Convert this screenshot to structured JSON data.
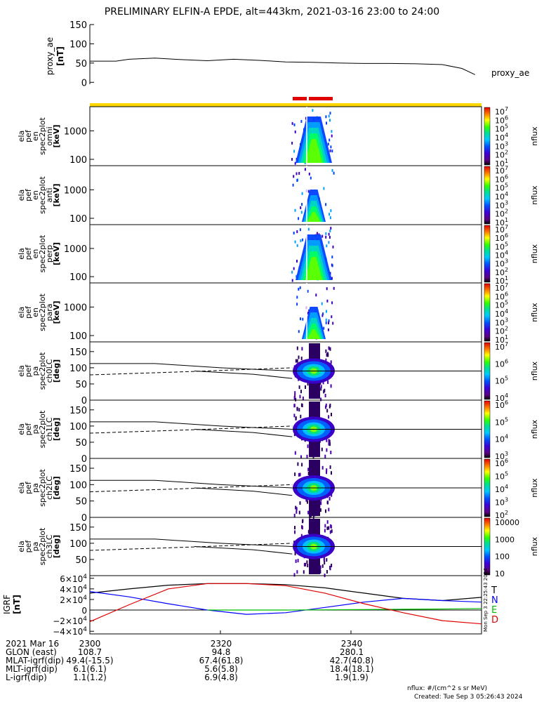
{
  "title": "PRELIMINARY ELFIN-A EPDE, alt=443km, 2021-03-16 23:00 to 24:00",
  "footer": {
    "units": "nflux: #/(cm^2 s sr MeV)",
    "created": "Created: Tue Sep  3 05:26:43 2024",
    "side_stamp": "Mon Sep  3 22:25:43 2024"
  },
  "colors": {
    "panel_line": "#000000",
    "orbit_bar": "#ffd700",
    "science_zone": "#e00000",
    "field_T": "#000000",
    "field_N": "#0000ff",
    "field_E": "#00c000",
    "field_D": "#e00000"
  },
  "chart_data": [
    {
      "panel": "proxy_ae",
      "type": "line",
      "ylabel": [
        "proxy_ae",
        "[nT]"
      ],
      "series_label": "proxy_ae",
      "ylim": [
        -5,
        150
      ],
      "yticks": [
        "150",
        "100",
        "50",
        "0"
      ],
      "ytick_values": [
        150,
        100,
        50,
        0
      ],
      "x": [
        2300,
        2304,
        2306,
        2310,
        2314,
        2318,
        2322,
        2326,
        2330,
        2334,
        2338,
        2342,
        2346,
        2350,
        2354,
        2357,
        2359
      ],
      "values": [
        55,
        55,
        60,
        63,
        59,
        56,
        60,
        57,
        53,
        52,
        50,
        49,
        49,
        48,
        46,
        36,
        20
      ]
    },
    {
      "panel": "omni_en",
      "type": "heatmap",
      "ylabel": [
        "ela",
        "pef",
        "en",
        "spec2plot",
        "omni",
        "[keV]"
      ],
      "yticks": [
        "1000",
        "100"
      ],
      "ytick_values": [
        1000,
        100
      ],
      "ylim": [
        60,
        7000
      ],
      "ylog": true,
      "colorbar": {
        "label": "nflux",
        "ticks": [
          "10^7",
          "10^6",
          "10^5",
          "10^4",
          "10^3",
          "10^2",
          "10^1"
        ]
      }
    },
    {
      "panel": "anti_en",
      "type": "heatmap",
      "ylabel": [
        "ela",
        "pef",
        "en",
        "spec2plot",
        "anti",
        "[keV]"
      ],
      "yticks": [
        "1000",
        "100"
      ],
      "ytick_values": [
        1000,
        100
      ],
      "ylim": [
        60,
        7000
      ],
      "ylog": true,
      "colorbar": {
        "label": "nflux",
        "ticks": [
          "10^7",
          "10^6",
          "10^5",
          "10^4",
          "10^3",
          "10^2",
          "10^1"
        ]
      }
    },
    {
      "panel": "perp_en",
      "type": "heatmap",
      "ylabel": [
        "ela",
        "pef",
        "en",
        "spec2plot",
        "perp",
        "[keV]"
      ],
      "yticks": [
        "1000",
        "100"
      ],
      "ytick_values": [
        1000,
        100
      ],
      "ylim": [
        60,
        7000
      ],
      "ylog": true,
      "colorbar": {
        "label": "nflux",
        "ticks": [
          "10^7",
          "10^6",
          "10^5",
          "10^4",
          "10^3",
          "10^2",
          "10^1"
        ]
      }
    },
    {
      "panel": "para_en",
      "type": "heatmap",
      "ylabel": [
        "ela",
        "pef",
        "en",
        "spec2plot",
        "para",
        "[keV]"
      ],
      "yticks": [
        "1000",
        "100"
      ],
      "ytick_values": [
        1000,
        100
      ],
      "ylim": [
        60,
        7000
      ],
      "ylog": true,
      "colorbar": {
        "label": "nflux",
        "ticks": [
          "10^7",
          "10^6",
          "10^5",
          "10^4",
          "10^3",
          "10^2",
          "10^1"
        ]
      }
    },
    {
      "panel": "ch0LC_pa",
      "type": "heatmap",
      "ylabel": [
        "ela",
        "pef",
        "pa",
        "spec2plot",
        "ch0LC",
        "[deg]"
      ],
      "yticks": [
        "150",
        "100",
        "50",
        "0"
      ],
      "ytick_values": [
        150,
        100,
        50,
        0
      ],
      "ylim": [
        0,
        180
      ],
      "colorbar": {
        "label": "nflux",
        "ticks": [
          "10^7",
          "10^6",
          "10^5",
          "10^4"
        ]
      }
    },
    {
      "panel": "ch1LC_pa",
      "type": "heatmap",
      "ylabel": [
        "ela",
        "pef",
        "pa",
        "spec2plot",
        "ch1LC",
        "[deg]"
      ],
      "yticks": [
        "150",
        "100",
        "50",
        "0"
      ],
      "ytick_values": [
        150,
        100,
        50,
        0
      ],
      "ylim": [
        0,
        180
      ],
      "colorbar": {
        "label": "nflux",
        "ticks": [
          "10^6",
          "10^5",
          "10^4",
          "10^3"
        ]
      }
    },
    {
      "panel": "ch2LC_pa",
      "type": "heatmap",
      "ylabel": [
        "ela",
        "pef",
        "pa",
        "spec2plot",
        "ch2LC",
        "[deg]"
      ],
      "yticks": [
        "150",
        "100",
        "50",
        "0"
      ],
      "ytick_values": [
        150,
        100,
        50,
        0
      ],
      "ylim": [
        0,
        180
      ],
      "colorbar": {
        "label": "nflux",
        "ticks": [
          "10^6",
          "10^5",
          "10^4",
          "10^3",
          "10^2"
        ]
      }
    },
    {
      "panel": "ch3LC_pa",
      "type": "heatmap",
      "ylabel": [
        "ela",
        "pef",
        "pa",
        "spec2plot",
        "ch3LC",
        "[deg]"
      ],
      "yticks": [
        "150",
        "100",
        "50"
      ],
      "ytick_values": [
        150,
        100,
        50
      ],
      "ylim": [
        0,
        180
      ],
      "colorbar": {
        "label": "nflux",
        "ticks": [
          "10000",
          "1000",
          "100",
          "10"
        ],
        "tick_values": [
          10000,
          1000,
          100,
          10
        ]
      }
    },
    {
      "panel": "igrf",
      "type": "line",
      "ylabel": [
        "IGRF",
        "[nT]"
      ],
      "yticks": [
        "6×10^4",
        "4×10^4",
        "2×10^4",
        "0",
        "−2×10^4",
        "−4×10^4"
      ],
      "ytick_values": [
        60000,
        40000,
        20000,
        0,
        -20000,
        -40000
      ],
      "ylim": [
        -45000,
        65000
      ],
      "legend": [
        "T",
        "N",
        "E",
        "D"
      ],
      "x": [
        2300,
        2306,
        2312,
        2318,
        2324,
        2330,
        2336,
        2342,
        2348,
        2354,
        2360
      ],
      "series": [
        {
          "name": "T",
          "values": [
            32000,
            40000,
            47000,
            50000,
            50000,
            48000,
            42000,
            32000,
            22000,
            18000,
            24000
          ]
        },
        {
          "name": "N",
          "values": [
            35000,
            25000,
            12000,
            0,
            -8000,
            -5000,
            5000,
            15000,
            22000,
            18000,
            15000
          ]
        },
        {
          "name": "E",
          "values": [
            null,
            null,
            null,
            0,
            0,
            0,
            500,
            1000,
            1500,
            2000,
            3000
          ]
        },
        {
          "name": "D",
          "values": [
            -22000,
            10000,
            40000,
            50000,
            50000,
            46000,
            32000,
            12000,
            -5000,
            -20000,
            -26000
          ]
        }
      ]
    }
  ],
  "time_axis": {
    "ticks": [
      "2300",
      "2320",
      "2340"
    ],
    "tick_values": [
      2300,
      2320,
      2340
    ],
    "xlim": [
      2300,
      2360
    ]
  },
  "ephemeris": {
    "rows": [
      {
        "label": "2021 Mar 16",
        "values": [
          "2300",
          "2320",
          "2340"
        ]
      },
      {
        "label": "GLON (east)",
        "values": [
          "108.7",
          "94.8",
          "280.1"
        ]
      },
      {
        "label": "MLAT-igrf(dip)",
        "values": [
          "49.4(-15.5)",
          "67.4(61.8)",
          "42.7(40.8)"
        ]
      },
      {
        "label": "MLT-igrf(dip)",
        "values": [
          "6.1(6.1)",
          "5.6(5.8)",
          "18.4(18.1)"
        ]
      },
      {
        "label": "L-igrf(dip)",
        "values": [
          "1.1(1.2)",
          "6.9(4.8)",
          "1.9(1.9)"
        ]
      }
    ]
  }
}
